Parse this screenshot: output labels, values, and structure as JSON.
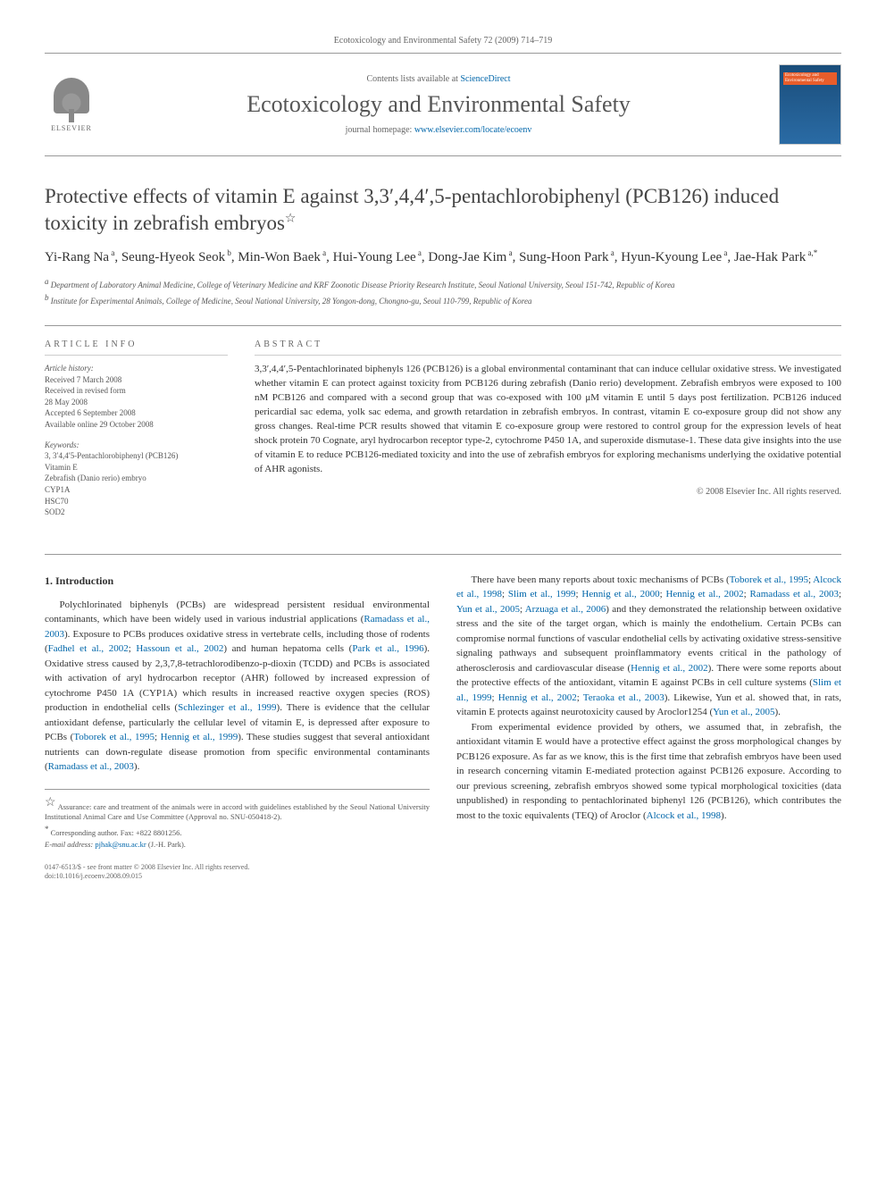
{
  "header": {
    "citation": "Ecotoxicology and Environmental Safety 72 (2009) 714–719",
    "contents_prefix": "Contents lists available at ",
    "contents_link": "ScienceDirect",
    "journal": "Ecotoxicology and Environmental Safety",
    "homepage_prefix": "journal homepage: ",
    "homepage_url": "www.elsevier.com/locate/ecoenv",
    "publisher": "ELSEVIER",
    "cover_text": "Ecotoxicology and Environmental Safety"
  },
  "article": {
    "title": "Protective effects of vitamin E against 3,3′,4,4′,5-pentachlorobiphenyl (PCB126) induced toxicity in zebrafish embryos",
    "title_star": "☆",
    "authors_html": "Yi-Rang Na <᠎a᠎>, Seung-Hyeok Seok <᠎b᠎>, Min-Won Baek <᠎a᠎>, Hui-Young Lee <᠎a᠎>, Dong-Jae Kim <᠎a᠎>, Sung-Hoon Park <᠎a᠎>, Hyun-Kyoung Lee <᠎a᠎>, Jae-Hak Park <᠎a,*᠎>",
    "authors": [
      {
        "name": "Yi-Rang Na",
        "aff": "a"
      },
      {
        "name": "Seung-Hyeok Seok",
        "aff": "b"
      },
      {
        "name": "Min-Won Baek",
        "aff": "a"
      },
      {
        "name": "Hui-Young Lee",
        "aff": "a"
      },
      {
        "name": "Dong-Jae Kim",
        "aff": "a"
      },
      {
        "name": "Sung-Hoon Park",
        "aff": "a"
      },
      {
        "name": "Hyun-Kyoung Lee",
        "aff": "a"
      },
      {
        "name": "Jae-Hak Park",
        "aff": "a,*"
      }
    ],
    "affiliations": {
      "a": "Department of Laboratory Animal Medicine, College of Veterinary Medicine and KRF Zoonotic Disease Priority Research Institute, Seoul National University, Seoul 151-742, Republic of Korea",
      "b": "Institute for Experimental Animals, College of Medicine, Seoul National University, 28 Yongon-dong, Chongno-gu, Seoul 110-799, Republic of Korea"
    }
  },
  "info": {
    "heading": "ARTICLE INFO",
    "history_label": "Article history:",
    "received": "Received 7 March 2008",
    "revised1": "Received in revised form",
    "revised2": "28 May 2008",
    "accepted": "Accepted 6 September 2008",
    "online": "Available online 29 October 2008",
    "keywords_label": "Keywords:",
    "keywords": [
      "3, 3′4,4′5-Pentachlorobiphenyl (PCB126)",
      "Vitamin E",
      "Zebrafish (Danio rerio) embryo",
      "CYP1A",
      "HSC70",
      "SOD2"
    ]
  },
  "abstract": {
    "heading": "ABSTRACT",
    "text": "3,3′,4,4′,5-Pentachlorinated biphenyls 126 (PCB126) is a global environmental contaminant that can induce cellular oxidative stress. We investigated whether vitamin E can protect against toxicity from PCB126 during zebrafish (Danio rerio) development. Zebrafish embryos were exposed to 100 nM PCB126 and compared with a second group that was co-exposed with 100 μM vitamin E until 5 days post fertilization. PCB126 induced pericardial sac edema, yolk sac edema, and growth retardation in zebrafish embryos. In contrast, vitamin E co-exposure group did not show any gross changes. Real-time PCR results showed that vitamin E co-exposure group were restored to control group for the expression levels of heat shock protein 70 Cognate, aryl hydrocarbon receptor type-2, cytochrome P450 1A, and superoxide dismutase-1. These data give insights into the use of vitamin E to reduce PCB126-mediated toxicity and into the use of zebrafish embryos for exploring mechanisms underlying the oxidative potential of AHR agonists.",
    "copyright": "© 2008 Elsevier Inc. All rights reserved."
  },
  "body": {
    "section_num": "1.",
    "section_title": "Introduction",
    "left_paras": [
      {
        "text": "Polychlorinated biphenyls (PCBs) are widespread persistent residual environmental contaminants, which have been widely used in various industrial applications (",
        "cite": "Ramadass et al., 2003",
        "tail": "). Exposure to PCBs produces oxidative stress in vertebrate cells, including those of rodents ("
      },
      {
        "cite": "Fadhel et al., 2002",
        "mid": "; ",
        "cite2": "Hassoun et al., 2002",
        "tail": ") and human hepatoma cells ("
      },
      {
        "cite": "Park et al., 1996",
        "tail": "). Oxidative stress caused by 2,3,7,8-tetrachlorodibenzo-p-dioxin (TCDD) and PCBs is associated with activation of aryl hydrocarbon receptor (AHR) followed by increased expression of cytochrome P450 1A (CYP1A) which results in increased reactive oxygen species (ROS) production in endothelial cells ("
      },
      {
        "cite": "Schlezinger et al., 1999",
        "tail": "). There is evidence that the cellular antioxidant defense, particularly the cellular level of vitamin E, is depressed after exposure to PCBs ("
      },
      {
        "cite": "Toborek et al., 1995",
        "mid": "; ",
        "cite2": "Hennig et al., 1999",
        "tail": "). These studies suggest that several antioxidant nutrients can down-regulate disease promotion from specific environmental contaminants ("
      },
      {
        "cite": "Ramadass et al., 2003",
        "tail": ")."
      }
    ],
    "left_full": "Polychlorinated biphenyls (PCBs) are widespread persistent residual environmental contaminants, which have been widely used in various industrial applications (Ramadass et al., 2003). Exposure to PCBs produces oxidative stress in vertebrate cells, including those of rodents (Fadhel et al., 2002; Hassoun et al., 2002) and human hepatoma cells (Park et al., 1996). Oxidative stress caused by 2,3,7,8-tetrachlorodibenzo-p-dioxin (TCDD) and PCBs is associated with activation of aryl hydrocarbon receptor (AHR) followed by increased expression of cytochrome P450 1A (CYP1A) which results in increased reactive oxygen species (ROS) production in endothelial cells (Schlezinger et al., 1999). There is evidence that the cellular antioxidant defense, particularly the cellular level of vitamin E, is depressed after exposure to PCBs (Toborek et al., 1995; Hennig et al., 1999). These studies suggest that several antioxidant nutrients can down-regulate disease promotion from specific environmental contaminants (Ramadass et al., 2003).",
    "right_p1": "There have been many reports about toxic mechanisms of PCBs (Toborek et al., 1995; Alcock et al., 1998; Slim et al., 1999; Hennig et al., 2000; Hennig et al., 2002; Ramadass et al., 2003; Yun et al., 2005; Arzuaga et al., 2006) and they demonstrated the relationship between oxidative stress and the site of the target organ, which is mainly the endothelium. Certain PCBs can compromise normal functions of vascular endothelial cells by activating oxidative stress-sensitive signaling pathways and subsequent proinflammatory events critical in the pathology of atherosclerosis and cardiovascular disease (Hennig et al., 2002). There were some reports about the protective effects of the antioxidant, vitamin E against PCBs in cell culture systems (Slim et al., 1999; Hennig et al., 2002; Teraoka et al., 2003). Likewise, Yun et al. showed that, in rats, vitamin E protects against neurotoxicity caused by Aroclor1254 (Yun et al., 2005).",
    "right_p2": "From experimental evidence provided by others, we assumed that, in zebrafish, the antioxidant vitamin E would have a protective effect against the gross morphological changes by PCB126 exposure. As far as we know, this is the first time that zebrafish embryos have been used in research concerning vitamin E-mediated protection against PCB126 exposure. According to our previous screening, zebrafish embryos showed some typical morphological toxicities (data unpublished) in responding to pentachlorinated biphenyl 126 (PCB126), which contributes the most to the toxic equivalents (TEQ) of Aroclor (Alcock et al., 1998).",
    "right_cites_p1": [
      "Toborek et al., 1995",
      "Alcock et al., 1998",
      "Slim et al., 1999",
      "Hennig et al., 2000",
      "Hennig et al., 2002",
      "Ramadass et al., 2003",
      "Yun et al., 2005",
      "Arzuaga et al., 2006",
      "Hennig et al., 2002",
      "Slim et al., 1999",
      "Hennig et al., 2002",
      "Teraoka et al., 2003",
      "Yun et al., 2005"
    ],
    "right_cites_p2": [
      "Alcock et al., 1998"
    ]
  },
  "footnotes": {
    "assurance": "Assurance: care and treatment of the animals were in accord with guidelines established by the Seoul National University Institutional Animal Care and Use Committee (Approval no. SNU-050418-2).",
    "corresponding": "Corresponding author. Fax: +822 8801256.",
    "email_label": "E-mail address:",
    "email": "pjhak@snu.ac.kr",
    "email_suffix": "(J.-H. Park)."
  },
  "footer": {
    "line1": "0147-6513/$ - see front matter © 2008 Elsevier Inc. All rights reserved.",
    "line2": "doi:10.1016/j.ecoenv.2008.09.015"
  },
  "colors": {
    "link": "#0066aa",
    "text": "#333333",
    "muted": "#666666",
    "rule": "#999999",
    "cover_bg_top": "#1a4d7a",
    "cover_bg_bot": "#2a6ba5",
    "cover_bar": "#e85d2b"
  },
  "typography": {
    "body_fontsize": 11,
    "title_fontsize": 23,
    "journal_fontsize": 26,
    "authors_fontsize": 15,
    "aff_fontsize": 9,
    "info_fontsize": 9,
    "footnote_fontsize": 8.5,
    "footer_fontsize": 8
  }
}
